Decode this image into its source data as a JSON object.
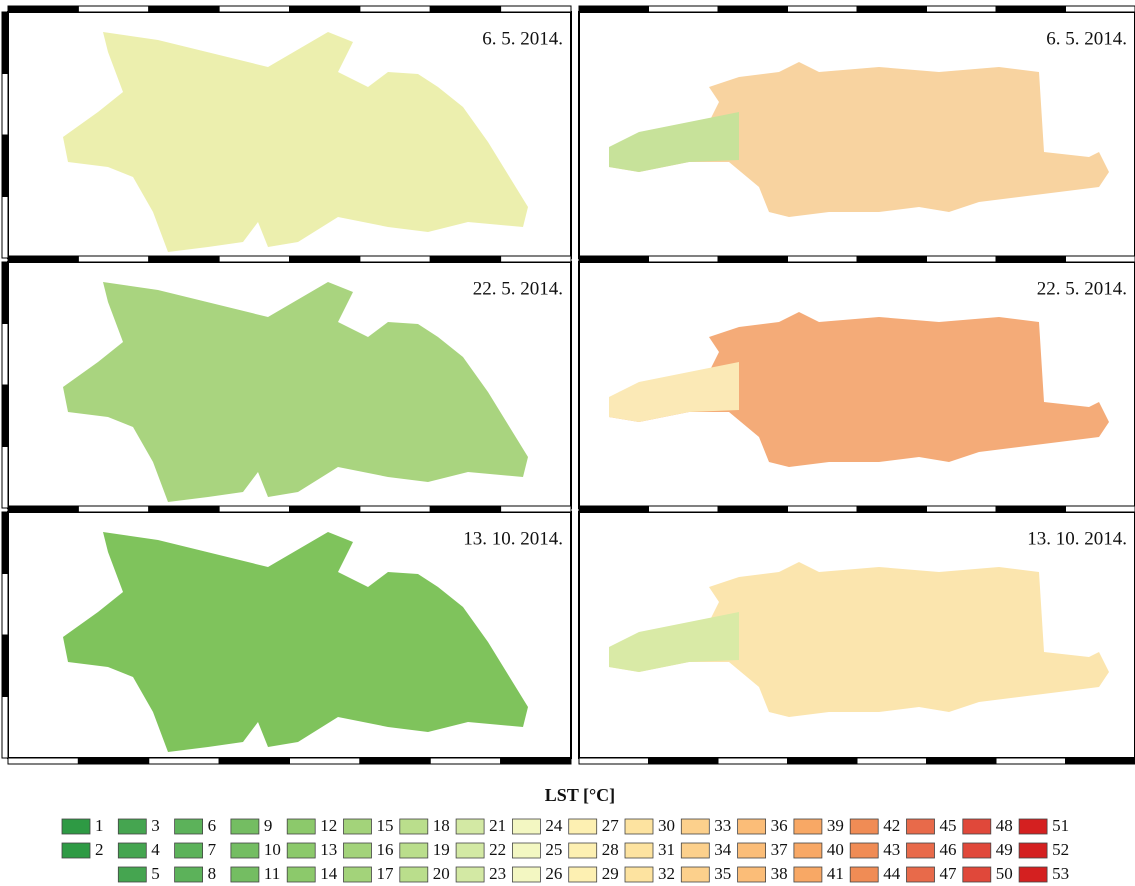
{
  "panels": [
    {
      "date": "6. 5. 2014."
    },
    {
      "date": "6. 5. 2014."
    },
    {
      "date": "22. 5. 2014."
    },
    {
      "date": "22. 5. 2014."
    },
    {
      "date": "13. 10. 2014."
    },
    {
      "date": "13. 10. 2014."
    }
  ],
  "legend": {
    "title": "LST [°C]",
    "items": [
      {
        "label": 1,
        "color": "#2e9a44"
      },
      {
        "label": 2,
        "color": "#2e9a44"
      },
      {
        "label": 3,
        "color": "#45a550"
      },
      {
        "label": 4,
        "color": "#45a550"
      },
      {
        "label": 5,
        "color": "#45a550"
      },
      {
        "label": 6,
        "color": "#5cb25a"
      },
      {
        "label": 7,
        "color": "#5cb25a"
      },
      {
        "label": 8,
        "color": "#5cb25a"
      },
      {
        "label": 9,
        "color": "#74bd62"
      },
      {
        "label": 10,
        "color": "#74bd62"
      },
      {
        "label": 11,
        "color": "#74bd62"
      },
      {
        "label": 12,
        "color": "#8cc96b"
      },
      {
        "label": 13,
        "color": "#8cc96b"
      },
      {
        "label": 14,
        "color": "#8cc96b"
      },
      {
        "label": 15,
        "color": "#a3d37a"
      },
      {
        "label": 16,
        "color": "#a3d37a"
      },
      {
        "label": 17,
        "color": "#a3d37a"
      },
      {
        "label": 18,
        "color": "#bade8c"
      },
      {
        "label": 19,
        "color": "#bade8c"
      },
      {
        "label": 20,
        "color": "#bade8c"
      },
      {
        "label": 21,
        "color": "#d3e9a4"
      },
      {
        "label": 22,
        "color": "#d3e9a4"
      },
      {
        "label": 23,
        "color": "#d3e9a4"
      },
      {
        "label": 24,
        "color": "#f3f7c2"
      },
      {
        "label": 25,
        "color": "#f3f7c2"
      },
      {
        "label": 26,
        "color": "#f3f7c2"
      },
      {
        "label": 27,
        "color": "#fdf0b2"
      },
      {
        "label": 28,
        "color": "#fdf0b2"
      },
      {
        "label": 29,
        "color": "#fdf0b2"
      },
      {
        "label": 30,
        "color": "#fde3a0"
      },
      {
        "label": 31,
        "color": "#fde3a0"
      },
      {
        "label": 32,
        "color": "#fde3a0"
      },
      {
        "label": 33,
        "color": "#fcd08c"
      },
      {
        "label": 34,
        "color": "#fcd08c"
      },
      {
        "label": 35,
        "color": "#fcd08c"
      },
      {
        "label": 36,
        "color": "#fbbd78"
      },
      {
        "label": 37,
        "color": "#fbbd78"
      },
      {
        "label": 38,
        "color": "#fbbd78"
      },
      {
        "label": 39,
        "color": "#f8a865"
      },
      {
        "label": 40,
        "color": "#f8a865"
      },
      {
        "label": 41,
        "color": "#f8a865"
      },
      {
        "label": 42,
        "color": "#f08c55"
      },
      {
        "label": 43,
        "color": "#f08c55"
      },
      {
        "label": 44,
        "color": "#f08c55"
      },
      {
        "label": 45,
        "color": "#e86a4a"
      },
      {
        "label": 46,
        "color": "#e86a4a"
      },
      {
        "label": 47,
        "color": "#e86a4a"
      },
      {
        "label": 48,
        "color": "#e0483a"
      },
      {
        "label": 49,
        "color": "#e0483a"
      },
      {
        "label": 50,
        "color": "#e0483a"
      },
      {
        "label": 51,
        "color": "#d42020"
      },
      {
        "label": 52,
        "color": "#d42020"
      },
      {
        "label": 53,
        "color": "#d42020"
      }
    ]
  }
}
